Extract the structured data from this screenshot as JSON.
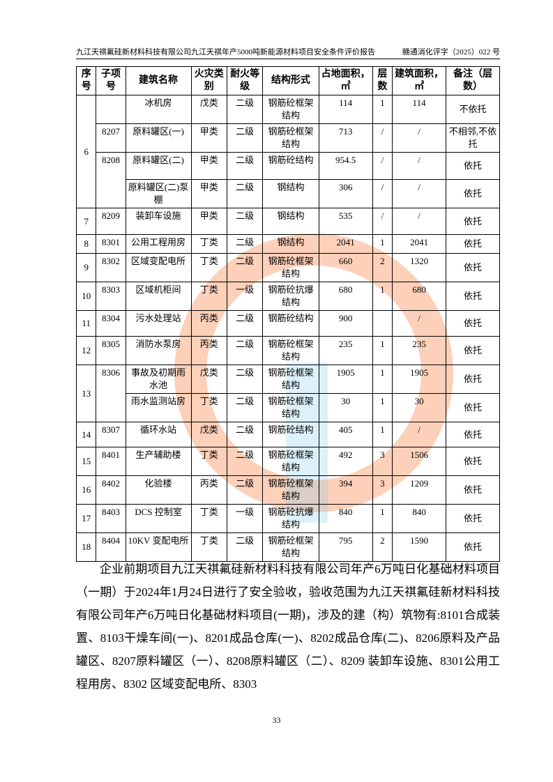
{
  "header": {
    "left": "九江天祺氟硅新材料科技有限公司九江天祺年产5000吨新能源材料项目安全条件评价报告",
    "right": "赣通消化评字（2025）022 号"
  },
  "table": {
    "headers": [
      "序号",
      "子项号",
      "建筑名称",
      "火灾类别",
      "耐火等级",
      "结构形式",
      "占地面积，㎡",
      "层数",
      "建筑面积，㎡",
      "备注（层数）"
    ],
    "rows": [
      {
        "seq": "6",
        "sub": "",
        "name": "冰机房",
        "fire": "戊类",
        "grade": "二级",
        "struct": "钢筋砼框架结构",
        "area": "114",
        "floors": "1",
        "barea": "114",
        "note": "不依托"
      },
      {
        "sub": "8207",
        "name": "原料罐区(一)",
        "fire": "甲类",
        "grade": "二级",
        "struct": "钢筋砼框架结构",
        "area": "713",
        "floors": "/",
        "barea": "/",
        "note": "不相邻,不依托"
      },
      {
        "sub": "8208",
        "name": "原料罐区(二)",
        "fire": "甲类",
        "grade": "二级",
        "struct": "钢筋砼结构",
        "area": "954.5",
        "floors": "/",
        "barea": "/",
        "note": "依托"
      },
      {
        "name": "原料罐区(二)泵棚",
        "fire": "甲类",
        "grade": "二级",
        "struct": "钢结构",
        "area": "306",
        "floors": "/",
        "barea": "/",
        "note": "依托"
      },
      {
        "seq": "7",
        "sub": "8209",
        "name": "装卸车设施",
        "fire": "甲类",
        "grade": "二级",
        "struct": "钢结构",
        "area": "535",
        "floors": "/",
        "barea": "/",
        "note": "依托"
      },
      {
        "seq": "8",
        "sub": "8301",
        "name": "公用工程用房",
        "fire": "丁类",
        "grade": "二级",
        "struct": "钢结构",
        "area": "2041",
        "floors": "1",
        "barea": "2041",
        "note": "依托"
      },
      {
        "seq": "9",
        "sub": "8302",
        "name": "区域变配电所",
        "fire": "丁类",
        "grade": "二级",
        "struct": "钢筋砼框架结构",
        "area": "660",
        "floors": "2",
        "barea": "1320",
        "note": "依托"
      },
      {
        "seq": "10",
        "sub": "8303",
        "name": "区域机柜间",
        "fire": "丁类",
        "grade": "一级",
        "struct": "钢筋砼抗爆结构",
        "area": "680",
        "floors": "1",
        "barea": "680",
        "note": "依托"
      },
      {
        "seq": "11",
        "sub": "8304",
        "name": "污水处理站",
        "fire": "丙类",
        "grade": "二级",
        "struct": "钢筋砼结构",
        "area": "900",
        "floors": "",
        "barea": "/",
        "note": "依托"
      },
      {
        "seq": "12",
        "sub": "8305",
        "name": "消防水泵房",
        "fire": "丙类",
        "grade": "二级",
        "struct": "钢筋砼框架结构",
        "area": "235",
        "floors": "1",
        "barea": "235",
        "note": "依托"
      },
      {
        "seq": "13",
        "sub": "8306",
        "name": "事故及初期雨水池",
        "fire": "戊类",
        "grade": "二级",
        "struct": "钢筋砼框架结构",
        "area": "1905",
        "floors": "1",
        "barea": "1905",
        "note": "依托"
      },
      {
        "name": "雨水监测站房",
        "fire": "丁类",
        "grade": "二级",
        "struct": "钢筋砼框架结构",
        "area": "30",
        "floors": "1",
        "barea": "30",
        "note": "依托"
      },
      {
        "seq": "14",
        "sub": "8307",
        "name": "循环水站",
        "fire": "戊类",
        "grade": "二级",
        "struct": "钢筋砼结构",
        "area": "405",
        "floors": "1",
        "barea": "/",
        "note": "依托"
      },
      {
        "seq": "15",
        "sub": "8401",
        "name": "生产辅助楼",
        "fire": "丁类",
        "grade": "二级",
        "struct": "钢筋砼框架结构",
        "area": "492",
        "floors": "3",
        "barea": "1506",
        "note": "依托"
      },
      {
        "seq": "16",
        "sub": "8402",
        "name": "化验楼",
        "fire": "丙类",
        "grade": "二级",
        "struct": "钢筋砼框架结构",
        "area": "394",
        "floors": "3",
        "barea": "1209",
        "note": "依托"
      },
      {
        "seq": "17",
        "sub": "8403",
        "name": "DCS 控制室",
        "fire": "丁类",
        "grade": "一级",
        "struct": "钢筋砼抗爆结构",
        "area": "840",
        "floors": "1",
        "barea": "840",
        "note": "依托"
      },
      {
        "seq": "18",
        "sub": "8404",
        "name": "10KV 变配电所",
        "fire": "丁类",
        "grade": "二级",
        "struct": "钢筋砼框架结构",
        "area": "795",
        "floors": "2",
        "barea": "1590",
        "note": "依托"
      }
    ]
  },
  "paragraph": "企业前期项目九江天祺氟硅新材料科技有限公司年产6万吨日化基础材料项目（一期）于2024年1月24日进行了安全验收，验收范围为九江天祺氟硅新材料科技有限公司年产6万吨日化基础材料项目(一期)，涉及的建（构）筑物有:8101合成装置、8103干燥车间(一)、8201成品仓库(一)、8202成品仓库(二)、8206原料及产品罐区、8207原料罐区（一）、8208原料罐区（二）、8209 装卸车设施、8301公用工程用房、8302 区域变配电所、8303",
  "page_number": "33",
  "colors": {
    "watermark_ring": "#f9a07a",
    "watermark_letters": "#8fd0f0"
  }
}
